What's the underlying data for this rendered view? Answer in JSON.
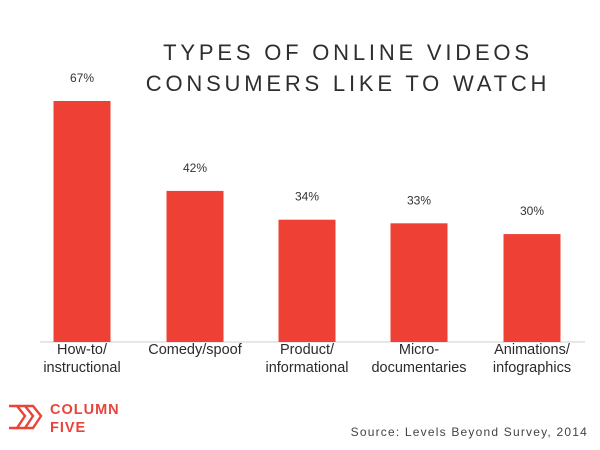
{
  "chart_data": {
    "type": "bar",
    "title_lines": [
      "TYPES OF ONLINE VIDEOS",
      "CONSUMERS LIKE TO WATCH"
    ],
    "categories": [
      [
        "How-to/",
        "instructional"
      ],
      [
        "Comedy/spoof"
      ],
      [
        "Product/",
        "informational"
      ],
      [
        "Micro-",
        "documentaries"
      ],
      [
        "Animations/",
        "infographics"
      ]
    ],
    "values": [
      67,
      42,
      34,
      33,
      30
    ],
    "value_labels": [
      "67%",
      "42%",
      "34%",
      "33%",
      "30%"
    ],
    "ylim": [
      0,
      67
    ],
    "grid": false,
    "bar_color": "#ee4035"
  },
  "source": "Source: Levels Beyond Survey, 2014",
  "brand": {
    "lines": [
      "COLUMN",
      "FIVE"
    ],
    "color": "#e8443a"
  }
}
